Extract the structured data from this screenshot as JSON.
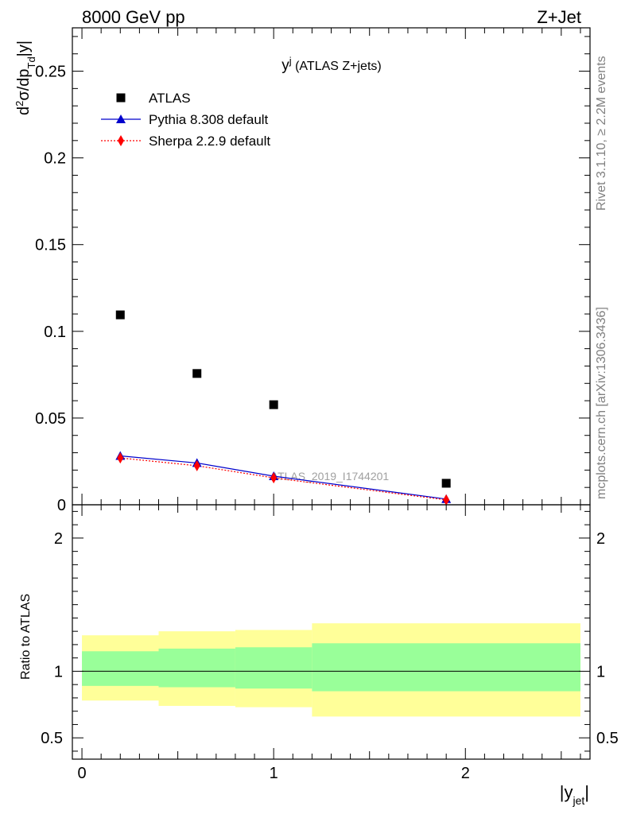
{
  "header": {
    "left": "8000 GeV pp",
    "right": "Z+Jet"
  },
  "side_labels": {
    "rivet": "Rivet 3.1.10, ≥ 2.2M events",
    "mcplots": "mcplots.cern.ch [arXiv:1306.3436]"
  },
  "chart_data": [
    {
      "type": "scatter",
      "title": "y^j (ATLAS Z+jets)",
      "title_main": "y",
      "title_sup": "j",
      "title_rest": " (ATLAS Z+jets)",
      "ylabel": "d²σ/dp_Td|y|",
      "xlim": [
        -0.05,
        2.65
      ],
      "ylim": [
        0,
        0.275
      ],
      "yticks": [
        0,
        0.05,
        0.1,
        0.15,
        0.2,
        0.25
      ],
      "ytick_labels": [
        "0",
        "0.05",
        "0.1",
        "0.15",
        "0.2",
        "0.25"
      ],
      "watermark": "ATLAS_2019_I1744201",
      "legend_position": "top-left",
      "series": [
        {
          "name": "ATLAS",
          "color": "#000000",
          "marker": "square",
          "x": [
            0.2,
            0.6,
            1.0,
            1.9
          ],
          "y": [
            0.1095,
            0.0757,
            0.0577,
            0.0124
          ]
        },
        {
          "name": "Pythia 8.308 default",
          "color": "#0000cc",
          "marker": "triangle",
          "line": "solid",
          "x": [
            0.2,
            0.6,
            1.0,
            1.9
          ],
          "y": [
            0.0282,
            0.0241,
            0.0165,
            0.0033
          ]
        },
        {
          "name": "Sherpa 2.2.9 default",
          "color": "#ff0000",
          "marker": "diamond",
          "line": "dotted",
          "x": [
            0.2,
            0.6,
            1.0,
            1.9
          ],
          "y": [
            0.027,
            0.0225,
            0.0155,
            0.0028
          ]
        }
      ]
    },
    {
      "type": "area",
      "ylabel": "Ratio to ATLAS",
      "xlabel": "|y_jet|",
      "xlim": [
        -0.05,
        2.65
      ],
      "ylim": [
        0.34,
        2.25
      ],
      "xticks": [
        0,
        1,
        2
      ],
      "xtick_labels": [
        "0",
        "1",
        "2"
      ],
      "yticks": [
        0.5,
        1,
        2
      ],
      "ytick_labels": [
        "0.5",
        "1",
        "2"
      ],
      "bins": [
        {
          "x0": 0.0,
          "x1": 0.4,
          "inner": [
            0.89,
            1.15
          ],
          "outer": [
            0.78,
            1.27
          ]
        },
        {
          "x0": 0.4,
          "x1": 0.8,
          "inner": [
            0.88,
            1.17
          ],
          "outer": [
            0.74,
            1.3
          ]
        },
        {
          "x0": 0.8,
          "x1": 1.2,
          "inner": [
            0.87,
            1.18
          ],
          "outer": [
            0.73,
            1.31
          ]
        },
        {
          "x0": 1.2,
          "x1": 2.6,
          "inner": [
            0.85,
            1.21
          ],
          "outer": [
            0.66,
            1.36
          ]
        }
      ],
      "inner_color": "#99ff99",
      "outer_color": "#ffff99",
      "reference_line": 1
    }
  ]
}
